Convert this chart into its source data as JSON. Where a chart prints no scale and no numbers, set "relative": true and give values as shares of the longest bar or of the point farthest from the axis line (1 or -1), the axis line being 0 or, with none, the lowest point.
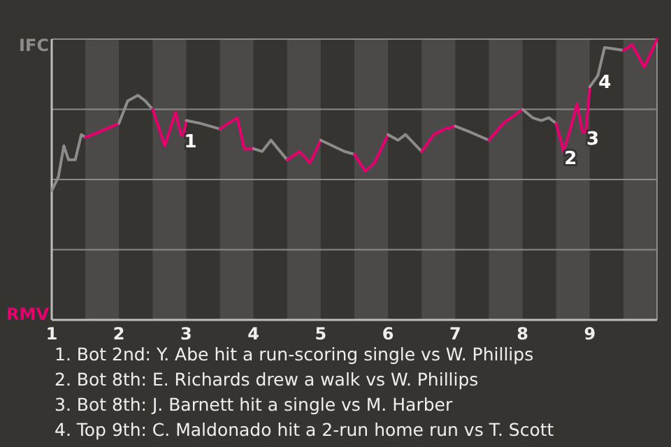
{
  "chart_data": {
    "type": "line",
    "relative": true,
    "xlim": [
      1,
      10
    ],
    "xticks": [
      1,
      2,
      3,
      4,
      5,
      6,
      7,
      8,
      9
    ],
    "legend": "left",
    "line_style": "solid",
    "ref_lines": [
      {
        "axis": "y",
        "value": 0.25,
        "color": "#8a8a8a"
      },
      {
        "axis": "y",
        "value": 0.5,
        "color": "#8a8a8a"
      },
      {
        "axis": "y",
        "value": 0.75,
        "color": "#8a8a8a"
      }
    ],
    "bands": [
      {
        "axis": "x",
        "from": 1.5,
        "to": 2,
        "color": "#4b4a48"
      },
      {
        "axis": "x",
        "from": 2.5,
        "to": 3,
        "color": "#4b4a48"
      },
      {
        "axis": "x",
        "from": 3.5,
        "to": 4,
        "color": "#4b4a48"
      },
      {
        "axis": "x",
        "from": 4.5,
        "to": 5,
        "color": "#4b4a48"
      },
      {
        "axis": "x",
        "from": 5.5,
        "to": 6,
        "color": "#4b4a48"
      },
      {
        "axis": "x",
        "from": 6.5,
        "to": 7,
        "color": "#4b4a48"
      },
      {
        "axis": "x",
        "from": 7.5,
        "to": 8,
        "color": "#4b4a48"
      },
      {
        "axis": "x",
        "from": 8.5,
        "to": 9,
        "color": "#4b4a48"
      },
      {
        "axis": "x",
        "from": 9.5,
        "to": 10,
        "color": "#4b4a48"
      }
    ],
    "series": [
      {
        "name": "IFC",
        "color": "#8c8c8c",
        "x": [
          1,
          1.1,
          1.18,
          1.25,
          1.35,
          1.44,
          1.5
        ],
        "values": [
          0.46,
          0.51,
          0.62,
          0.57,
          0.57,
          0.66,
          0.65
        ]
      },
      {
        "name": "RMV",
        "color": "#e5006e",
        "x": [
          1.5,
          1.71,
          2
        ],
        "values": [
          0.65,
          0.67,
          0.7
        ]
      },
      {
        "color": "#8c8c8c",
        "x": [
          2,
          2.13,
          2.28,
          2.39,
          2.5
        ],
        "values": [
          0.7,
          0.78,
          0.8,
          0.78,
          0.75
        ]
      },
      {
        "color": "#e5006e",
        "x": [
          2.5,
          2.68,
          2.84,
          2.92,
          2.96,
          3
        ],
        "values": [
          0.75,
          0.62,
          0.74,
          0.66,
          0.66,
          0.71
        ]
      },
      {
        "color": "#8c8c8c",
        "x": [
          3,
          3.21,
          3.5
        ],
        "values": [
          0.71,
          0.7,
          0.68
        ]
      },
      {
        "color": "#e5006e",
        "x": [
          3.5,
          3.62,
          3.76,
          3.86,
          4
        ],
        "values": [
          0.68,
          0.7,
          0.72,
          0.61,
          0.61
        ]
      },
      {
        "color": "#8c8c8c",
        "x": [
          4,
          4.13,
          4.26,
          4.5
        ],
        "values": [
          0.61,
          0.6,
          0.64,
          0.57
        ]
      },
      {
        "color": "#e5006e",
        "x": [
          4.5,
          4.68,
          4.84,
          5
        ],
        "values": [
          0.57,
          0.6,
          0.56,
          0.64
        ]
      },
      {
        "color": "#8c8c8c",
        "x": [
          5,
          5.35,
          5.5
        ],
        "values": [
          0.64,
          0.6,
          0.59
        ]
      },
      {
        "color": "#e5006e",
        "x": [
          5.5,
          5.66,
          5.8,
          6
        ],
        "values": [
          0.59,
          0.53,
          0.56,
          0.66
        ]
      },
      {
        "color": "#8c8c8c",
        "x": [
          6,
          6.15,
          6.26,
          6.5
        ],
        "values": [
          0.66,
          0.64,
          0.66,
          0.6
        ]
      },
      {
        "color": "#e5006e",
        "x": [
          6.5,
          6.68,
          6.84,
          7
        ],
        "values": [
          0.6,
          0.66,
          0.68,
          0.69
        ]
      },
      {
        "color": "#8c8c8c",
        "x": [
          7,
          7.21,
          7.5
        ],
        "values": [
          0.69,
          0.67,
          0.64
        ]
      },
      {
        "color": "#e5006e",
        "x": [
          7.5,
          7.71,
          8
        ],
        "values": [
          0.64,
          0.7,
          0.75
        ]
      },
      {
        "color": "#8c8c8c",
        "x": [
          8,
          8.15,
          8.28,
          8.39,
          8.5
        ],
        "values": [
          0.75,
          0.72,
          0.71,
          0.72,
          0.7
        ]
      },
      {
        "color": "#e5006e",
        "x": [
          8.5,
          8.61,
          8.71,
          8.81,
          8.89,
          8.94,
          9
        ],
        "values": [
          0.7,
          0.6,
          0.68,
          0.77,
          0.67,
          0.67,
          0.83
        ]
      },
      {
        "color": "#8c8c8c",
        "x": [
          9,
          9.12,
          9.22,
          9.5
        ],
        "values": [
          0.83,
          0.87,
          0.97,
          0.96
        ]
      },
      {
        "color": "#e5006e",
        "x": [
          9.5,
          9.63,
          9.81,
          10
        ],
        "values": [
          0.96,
          0.98,
          0.9,
          1.0
        ]
      }
    ],
    "annotations": [
      {
        "text": "1",
        "x": 2.96,
        "y": 0.66
      },
      {
        "text": "2",
        "x": 8.61,
        "y": 0.6
      },
      {
        "text": "3",
        "x": 8.94,
        "y": 0.67
      },
      {
        "text": "4",
        "x": 9.12,
        "y": 0.87
      },
      "1. Bot 2nd: Y. Abe hit a run-scoring single vs W. Phillips",
      "2. Bot 8th: E. Richards drew a walk vs W. Phillips",
      "3. Bot 8th: J. Barnett hit a single vs M. Harber",
      "4. Top 9th: C. Maldonado hit a 2-run home run vs T. Scott"
    ]
  }
}
